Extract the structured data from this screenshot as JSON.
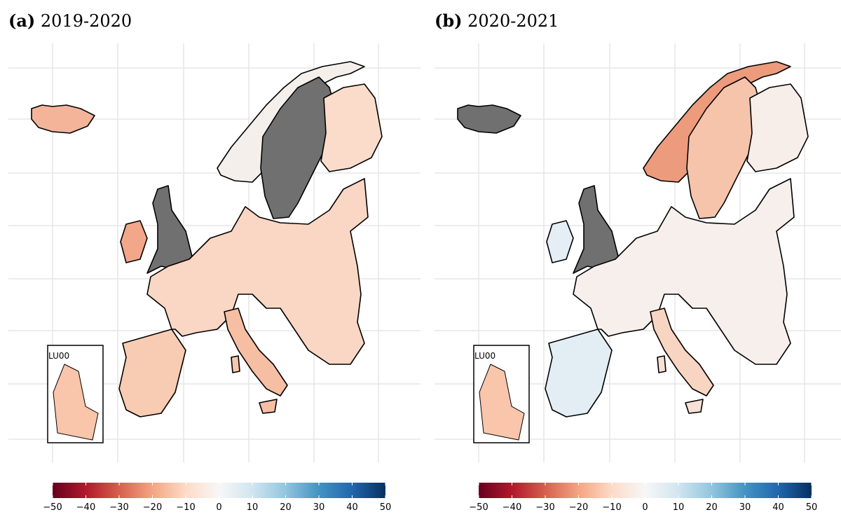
{
  "panels": [
    {
      "label": "(a)",
      "title": "2019-2020",
      "inset": {
        "label": "LU00",
        "value": -14
      }
    },
    {
      "label": "(b)",
      "title": "2020-2021",
      "inset": {
        "label": "LU00",
        "value": -14
      }
    }
  ],
  "colorbar": {
    "lim": [
      -50,
      50
    ],
    "ticks": [
      {
        "value": -50,
        "label": "−50"
      },
      {
        "value": -40,
        "label": "−40"
      },
      {
        "value": -30,
        "label": "−30"
      },
      {
        "value": -20,
        "label": "−20"
      },
      {
        "value": -10,
        "label": "−10"
      },
      0,
      10,
      20,
      30,
      40,
      50
    ],
    "colors": [
      "#67001f",
      "#b2182b",
      "#d6604d",
      "#f4a582",
      "#fddbc7",
      "#f7f7f7",
      "#d1e5f0",
      "#92c5de",
      "#4393c3",
      "#2166ac",
      "#053061"
    ]
  }
}
